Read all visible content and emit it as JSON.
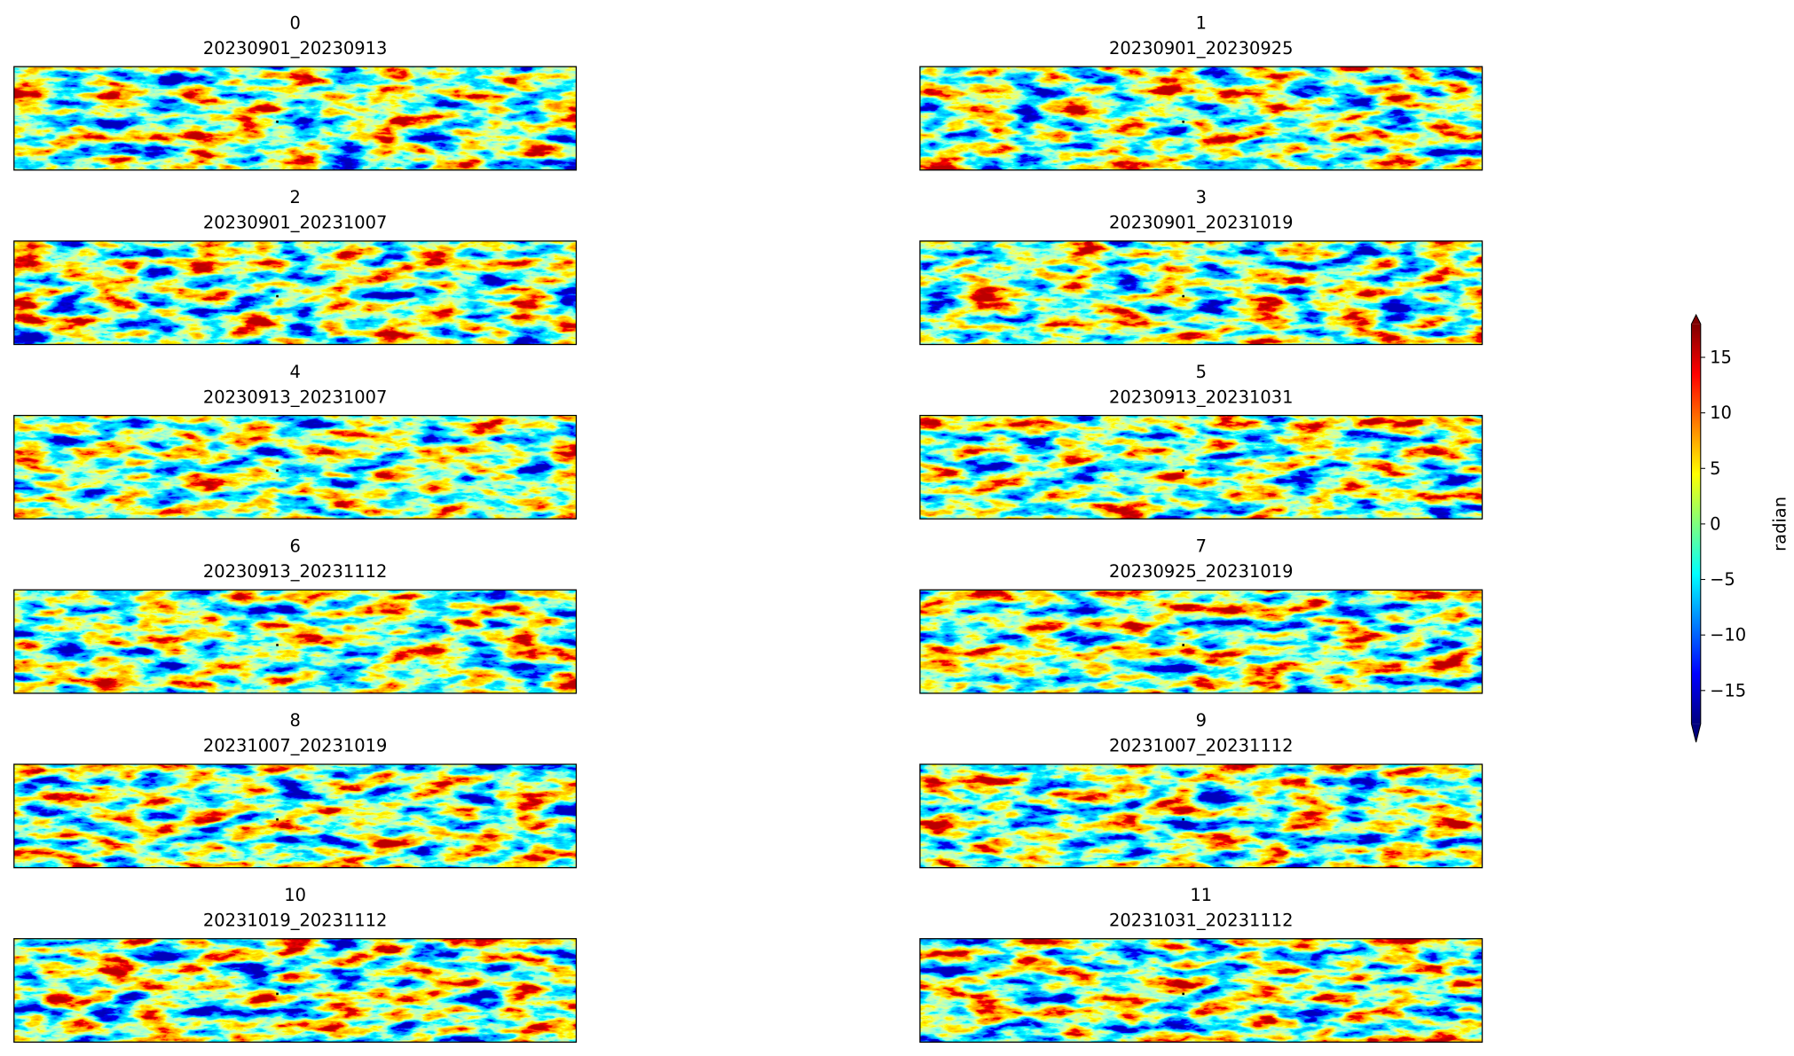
{
  "chart_data": {
    "type": "image-grid",
    "panels": [
      {
        "index": "0",
        "label": "20230901_20230913"
      },
      {
        "index": "1",
        "label": "20230901_20230925"
      },
      {
        "index": "2",
        "label": "20230901_20231007"
      },
      {
        "index": "3",
        "label": "20230901_20231019"
      },
      {
        "index": "4",
        "label": "20230913_20231007"
      },
      {
        "index": "5",
        "label": "20230913_20231031"
      },
      {
        "index": "6",
        "label": "20230913_20231112"
      },
      {
        "index": "7",
        "label": "20230925_20231019"
      },
      {
        "index": "8",
        "label": "20231007_20231019"
      },
      {
        "index": "9",
        "label": "20231007_20231112"
      },
      {
        "index": "10",
        "label": "20231019_20231112"
      },
      {
        "index": "11",
        "label": "20231031_20231112"
      }
    ],
    "colorbar": {
      "label": "radian",
      "lim": [
        -18,
        18
      ],
      "cmap": "jet",
      "ticks": [
        {
          "value": -15,
          "label": "−15"
        },
        {
          "value": -10,
          "label": "−10"
        },
        {
          "value": -5,
          "label": "−5"
        },
        0,
        5,
        10,
        15
      ]
    }
  }
}
